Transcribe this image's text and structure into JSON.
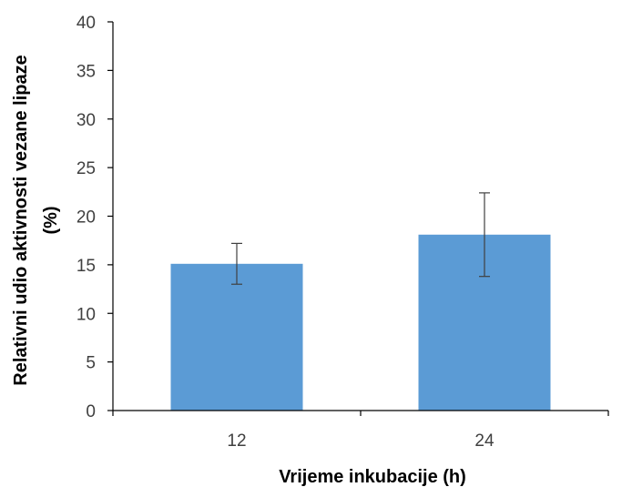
{
  "chart_data": {
    "type": "bar",
    "categories": [
      "12",
      "24"
    ],
    "values": [
      15.1,
      18.1
    ],
    "error": [
      2.1,
      4.3
    ],
    "ylabel_lines": [
      "Relativni udio aktivnosti vezane lipaze",
      "(%)"
    ],
    "xlabel": "Vrijeme inkubacije (h)",
    "ylim": [
      0,
      40
    ],
    "yticks": [
      "0",
      "5",
      "10",
      "15",
      "20",
      "25",
      "30",
      "35",
      "40"
    ],
    "bar_color": "#5b9bd5",
    "error_bar_color": "#404040",
    "axis_color": "#000000",
    "grid": false,
    "legend": "none"
  }
}
